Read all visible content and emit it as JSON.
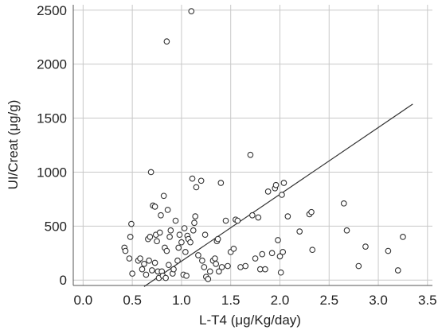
{
  "chart_data": {
    "type": "scatter",
    "xlabel": "L-T4 (μg/Kg/day)",
    "ylabel": "UI/Creat (μg/g)",
    "xlim": [
      -0.1,
      3.55
    ],
    "ylim": [
      -50,
      2550
    ],
    "x_ticks": [
      0.0,
      0.5,
      1.0,
      1.5,
      2.0,
      2.5,
      3.0,
      3.5
    ],
    "x_tick_labels": [
      "0.0",
      "0.5",
      "1.0",
      "1.5",
      "2.0",
      "2.5",
      "3.0",
      "3.5"
    ],
    "y_ticks": [
      0,
      500,
      1000,
      1500,
      2000,
      2500
    ],
    "y_tick_labels": [
      "0",
      "500",
      "1000",
      "1500",
      "2000",
      "2500"
    ],
    "grid": true,
    "colors": {
      "grid": "#c8c8c8",
      "frame": "#555555",
      "marker": "#333333",
      "trend": "#333333"
    },
    "trend_line": {
      "x": [
        0.62,
        3.35
      ],
      "y": [
        -60,
        1630
      ]
    },
    "points": [
      {
        "x": 0.42,
        "y": 300
      },
      {
        "x": 0.43,
        "y": 270
      },
      {
        "x": 0.48,
        "y": 400
      },
      {
        "x": 0.49,
        "y": 520
      },
      {
        "x": 0.47,
        "y": 200
      },
      {
        "x": 0.5,
        "y": 60
      },
      {
        "x": 0.56,
        "y": 180
      },
      {
        "x": 0.58,
        "y": 200
      },
      {
        "x": 0.6,
        "y": 100
      },
      {
        "x": 0.62,
        "y": 150
      },
      {
        "x": 0.64,
        "y": 50
      },
      {
        "x": 0.67,
        "y": 180
      },
      {
        "x": 0.66,
        "y": 380
      },
      {
        "x": 0.68,
        "y": 400
      },
      {
        "x": 0.69,
        "y": 1000
      },
      {
        "x": 0.7,
        "y": 90
      },
      {
        "x": 0.71,
        "y": 690
      },
      {
        "x": 0.73,
        "y": 680
      },
      {
        "x": 0.74,
        "y": 420
      },
      {
        "x": 0.75,
        "y": 360
      },
      {
        "x": 0.73,
        "y": 160
      },
      {
        "x": 0.76,
        "y": 80
      },
      {
        "x": 0.77,
        "y": 20
      },
      {
        "x": 0.78,
        "y": 440
      },
      {
        "x": 0.79,
        "y": 600
      },
      {
        "x": 0.8,
        "y": 80
      },
      {
        "x": 0.81,
        "y": 40
      },
      {
        "x": 0.82,
        "y": 780
      },
      {
        "x": 0.83,
        "y": 300
      },
      {
        "x": 0.84,
        "y": 20
      },
      {
        "x": 0.85,
        "y": 270
      },
      {
        "x": 0.86,
        "y": 650
      },
      {
        "x": 0.85,
        "y": 2210
      },
      {
        "x": 0.87,
        "y": 140
      },
      {
        "x": 0.88,
        "y": 400
      },
      {
        "x": 0.89,
        "y": 460
      },
      {
        "x": 0.91,
        "y": 60
      },
      {
        "x": 0.92,
        "y": 100
      },
      {
        "x": 0.94,
        "y": 550
      },
      {
        "x": 0.96,
        "y": 180
      },
      {
        "x": 0.97,
        "y": 300
      },
      {
        "x": 0.98,
        "y": 420
      },
      {
        "x": 1.0,
        "y": 350
      },
      {
        "x": 1.02,
        "y": 50
      },
      {
        "x": 1.03,
        "y": 480
      },
      {
        "x": 1.04,
        "y": 260
      },
      {
        "x": 1.05,
        "y": 40
      },
      {
        "x": 1.06,
        "y": 410
      },
      {
        "x": 1.07,
        "y": 380
      },
      {
        "x": 1.09,
        "y": 350
      },
      {
        "x": 1.1,
        "y": 2490
      },
      {
        "x": 1.11,
        "y": 940
      },
      {
        "x": 1.12,
        "y": 460
      },
      {
        "x": 1.13,
        "y": 530
      },
      {
        "x": 1.14,
        "y": 590
      },
      {
        "x": 1.15,
        "y": 860
      },
      {
        "x": 1.17,
        "y": 230
      },
      {
        "x": 1.2,
        "y": 920
      },
      {
        "x": 1.21,
        "y": 180
      },
      {
        "x": 1.23,
        "y": 120
      },
      {
        "x": 1.24,
        "y": 420
      },
      {
        "x": 1.25,
        "y": 30
      },
      {
        "x": 1.27,
        "y": 10
      },
      {
        "x": 1.29,
        "y": 80
      },
      {
        "x": 1.32,
        "y": 180
      },
      {
        "x": 1.34,
        "y": 200
      },
      {
        "x": 1.35,
        "y": 150
      },
      {
        "x": 1.36,
        "y": 360
      },
      {
        "x": 1.37,
        "y": 380
      },
      {
        "x": 1.38,
        "y": 80
      },
      {
        "x": 1.4,
        "y": 900
      },
      {
        "x": 1.41,
        "y": 120
      },
      {
        "x": 1.45,
        "y": 550
      },
      {
        "x": 1.47,
        "y": 130
      },
      {
        "x": 1.5,
        "y": 260
      },
      {
        "x": 1.53,
        "y": 290
      },
      {
        "x": 1.55,
        "y": 560
      },
      {
        "x": 1.57,
        "y": 550
      },
      {
        "x": 1.6,
        "y": 120
      },
      {
        "x": 1.65,
        "y": 130
      },
      {
        "x": 1.7,
        "y": 1160
      },
      {
        "x": 1.72,
        "y": 600
      },
      {
        "x": 1.75,
        "y": 200
      },
      {
        "x": 1.78,
        "y": 580
      },
      {
        "x": 1.8,
        "y": 100
      },
      {
        "x": 1.82,
        "y": 240
      },
      {
        "x": 1.85,
        "y": 100
      },
      {
        "x": 1.88,
        "y": 820
      },
      {
        "x": 1.92,
        "y": 250
      },
      {
        "x": 1.95,
        "y": 850
      },
      {
        "x": 1.96,
        "y": 880
      },
      {
        "x": 1.98,
        "y": 370
      },
      {
        "x": 2.0,
        "y": 220
      },
      {
        "x": 2.01,
        "y": 70
      },
      {
        "x": 2.02,
        "y": 790
      },
      {
        "x": 2.03,
        "y": 260
      },
      {
        "x": 2.04,
        "y": 900
      },
      {
        "x": 2.08,
        "y": 590
      },
      {
        "x": 2.2,
        "y": 450
      },
      {
        "x": 2.3,
        "y": 610
      },
      {
        "x": 2.32,
        "y": 630
      },
      {
        "x": 2.33,
        "y": 280
      },
      {
        "x": 2.65,
        "y": 710
      },
      {
        "x": 2.68,
        "y": 460
      },
      {
        "x": 2.8,
        "y": 130
      },
      {
        "x": 2.87,
        "y": 310
      },
      {
        "x": 3.1,
        "y": 270
      },
      {
        "x": 3.2,
        "y": 90
      },
      {
        "x": 3.25,
        "y": 400
      }
    ]
  }
}
